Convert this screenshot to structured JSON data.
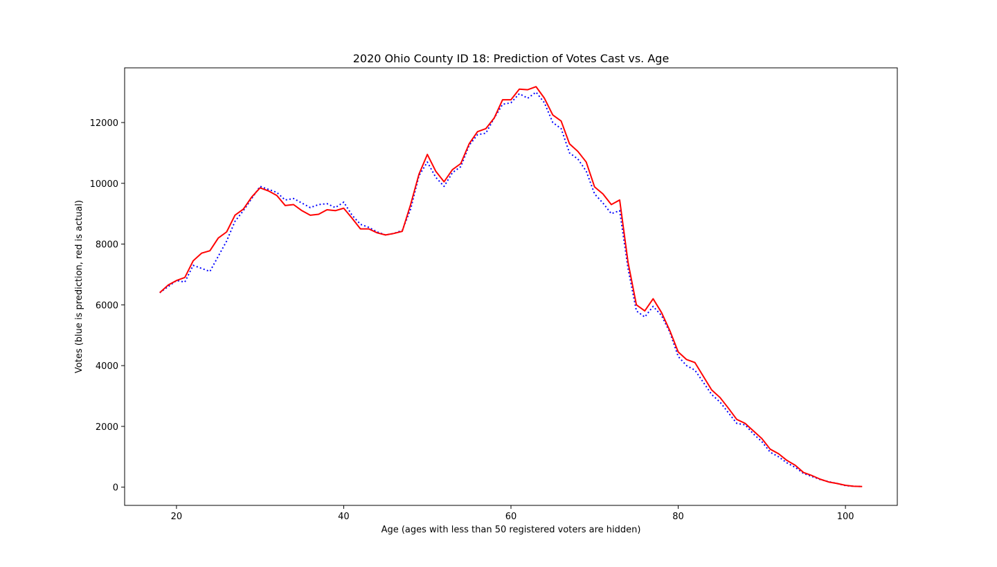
{
  "chart_data": {
    "type": "line",
    "title": "2020 Ohio County ID 18: Prediction of Votes Cast vs. Age",
    "xlabel": "Age (ages with less than 50 registered voters are hidden)",
    "ylabel": "Votes (blue is prediction, red is actual)",
    "xlim": [
      13.8,
      106.2
    ],
    "ylim": [
      -600,
      13800
    ],
    "xticks": [
      20,
      40,
      60,
      80,
      100
    ],
    "yticks": [
      0,
      2000,
      4000,
      6000,
      8000,
      10000,
      12000
    ],
    "grid": false,
    "x": [
      18,
      19,
      20,
      21,
      22,
      23,
      24,
      25,
      26,
      27,
      28,
      29,
      30,
      31,
      32,
      33,
      34,
      35,
      36,
      37,
      38,
      39,
      40,
      41,
      42,
      43,
      44,
      45,
      46,
      47,
      48,
      49,
      50,
      51,
      52,
      53,
      54,
      55,
      56,
      57,
      58,
      59,
      60,
      61,
      62,
      63,
      64,
      65,
      66,
      67,
      68,
      69,
      70,
      71,
      72,
      73,
      74,
      75,
      76,
      77,
      78,
      79,
      80,
      81,
      82,
      83,
      84,
      85,
      86,
      87,
      88,
      89,
      90,
      91,
      92,
      93,
      94,
      95,
      96,
      97,
      98,
      99,
      100,
      101,
      102
    ],
    "series": [
      {
        "color": "#0000ff",
        "linestyle": "dotted",
        "values": [
          6400,
          6600,
          6800,
          6750,
          7300,
          7200,
          7100,
          7600,
          8100,
          8750,
          9100,
          9500,
          9900,
          9800,
          9700,
          9450,
          9500,
          9350,
          9200,
          9300,
          9330,
          9200,
          9380,
          8950,
          8650,
          8550,
          8400,
          8300,
          8350,
          8450,
          9150,
          10250,
          10700,
          10200,
          9900,
          10350,
          10550,
          11250,
          11600,
          11650,
          12150,
          12600,
          12650,
          12950,
          12800,
          13000,
          12650,
          12000,
          11800,
          11000,
          10800,
          10400,
          9650,
          9350,
          9000,
          9100,
          7200,
          5800,
          5600,
          5950,
          5650,
          5100,
          4300,
          4000,
          3850,
          3450,
          3050,
          2800,
          2450,
          2100,
          2050,
          1750,
          1500,
          1150,
          1000,
          800,
          650,
          450,
          350,
          250,
          180,
          120,
          50,
          30,
          20
        ]
      },
      {
        "color": "#ff0000",
        "linestyle": "solid",
        "values": [
          6400,
          6650,
          6800,
          6900,
          7450,
          7700,
          7780,
          8200,
          8400,
          8950,
          9150,
          9550,
          9850,
          9750,
          9600,
          9270,
          9300,
          9100,
          8950,
          8980,
          9130,
          9100,
          9180,
          8850,
          8500,
          8500,
          8370,
          8300,
          8350,
          8420,
          9300,
          10300,
          10950,
          10400,
          10050,
          10450,
          10650,
          11300,
          11700,
          11800,
          12150,
          12750,
          12750,
          13100,
          13080,
          13180,
          12800,
          12250,
          12050,
          11300,
          11050,
          10700,
          9880,
          9650,
          9300,
          9450,
          7400,
          6000,
          5800,
          6200,
          5750,
          5150,
          4450,
          4200,
          4100,
          3650,
          3200,
          2950,
          2600,
          2230,
          2100,
          1850,
          1600,
          1250,
          1100,
          880,
          720,
          480,
          380,
          260,
          170,
          120,
          60,
          30,
          20
        ]
      }
    ]
  }
}
